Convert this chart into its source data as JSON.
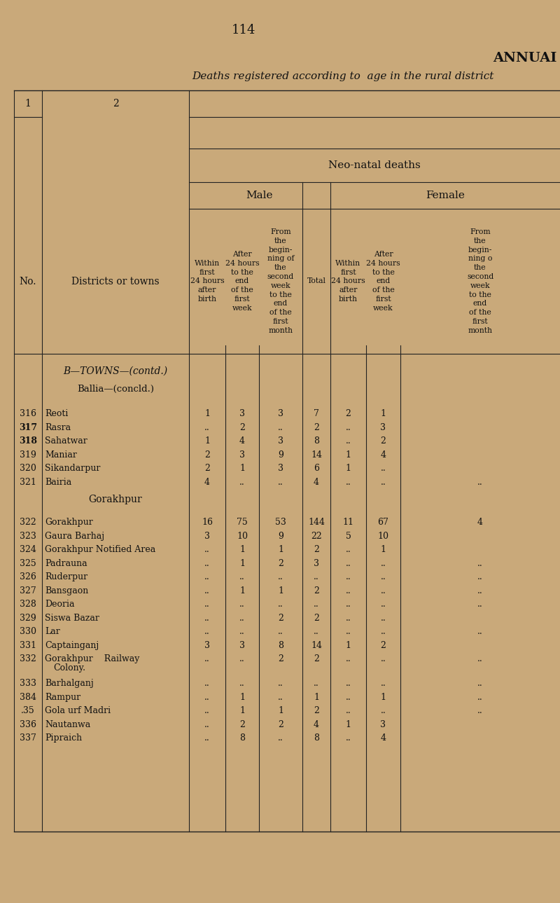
{
  "page_number": "114",
  "title_right": "ANNUAI",
  "subtitle": "Deaths registered according to  age in the rural district",
  "bg_color": "#c9a97a",
  "text_color": "#111111",
  "neo_natal_header": "Neo-natal deaths",
  "male_header": "Male",
  "female_header": "Female",
  "col_no_header": "No.",
  "col_district_header": "Districts or towns",
  "section_ballia_towns": "B—TOWNS—(contd.)",
  "subsection_ballia": "Ballia—(concld.)",
  "section_gorakhpur": "Gorakhpur",
  "col_header_m1": "Within\nfirst\n24 hours\nafter\nbirth",
  "col_header_m2": "After\n24 hours\nto the\nend\nof the\nfirst\nweek",
  "col_header_m3": "From\nthe\nbegin-\nning of\nthe\nsecond\nweek\nto the\nend\nof the\nfirst\nmonth",
  "col_header_total": "Total",
  "col_header_f1": "Within\nfirst\n24 hours\nafter\nbirth",
  "col_header_f2": "After\n24 hours\nto the\nend\nof the\nfirst\nweek",
  "col_header_f3": "From\nthe\nbegin-\nning o\nthe\nsecond\nweek\nto the\nend\nof the\nfirst\nmonth",
  "rows": [
    {
      "no": "316",
      "name": "Reoti",
      "dots": true,
      "m1": "1",
      "m2": "3",
      "m3": "3",
      "total": "7",
      "f1": "2",
      "f2": "1",
      "f3": "",
      "bold": false
    },
    {
      "no": "317",
      "name": "Rasra",
      "dots": true,
      "m1": "..",
      "m2": "2",
      "m3": "..",
      "total": "2",
      "f1": "..",
      "f2": "3",
      "f3": "",
      "bold": true
    },
    {
      "no": "318",
      "name": "Sahatwar",
      "dots": true,
      "m1": "1",
      "m2": "4",
      "m3": "3",
      "total": "8",
      "f1": "..",
      "f2": "2",
      "f3": "",
      "bold": true
    },
    {
      "no": "319",
      "name": "Maniar",
      "dots": true,
      "m1": "2",
      "m2": "3",
      "m3": "9",
      "total": "14",
      "f1": "1",
      "f2": "4",
      "f3": "",
      "bold": false
    },
    {
      "no": "320",
      "name": "Sikandarpur",
      "dots": true,
      "m1": "2",
      "m2": "1",
      "m3": "3",
      "total": "6",
      "f1": "1",
      "f2": "..",
      "f3": "",
      "bold": false
    },
    {
      "no": "321",
      "name": "Bairia",
      "dots": true,
      "m1": "4",
      "m2": "..",
      "m3": "..",
      "total": "4",
      "f1": "..",
      "f2": "..",
      "f3": "..",
      "bold": false
    },
    {
      "no": "322",
      "name": "Gorakhpur",
      "dots": true,
      "m1": "16",
      "m2": "75",
      "m3": "53",
      "total": "144",
      "f1": "11",
      "f2": "67",
      "f3": "4",
      "bold": false
    },
    {
      "no": "323",
      "name": "Gaura Barhaj",
      "dots": true,
      "m1": "3",
      "m2": "10",
      "m3": "9",
      "total": "22",
      "f1": "5",
      "f2": "10",
      "f3": "",
      "bold": false
    },
    {
      "no": "324",
      "name": "Gorakhpur Notified Area",
      "dots": false,
      "m1": "..",
      "m2": "1",
      "m3": "1",
      "total": "2",
      "f1": "..",
      "f2": "1",
      "f3": "",
      "bold": false
    },
    {
      "no": "325",
      "name": "Padrauna",
      "dots": true,
      "m1": "..",
      "m2": "1",
      "m3": "2",
      "total": "3",
      "f1": "..",
      "f2": "..",
      "f3": "..",
      "bold": false
    },
    {
      "no": "326",
      "name": "Ruderpur",
      "dots": true,
      "m1": "..",
      "m2": "..",
      "m3": "..",
      "total": "..",
      "f1": "..",
      "f2": "..",
      "f3": "..",
      "bold": false
    },
    {
      "no": "327",
      "name": "Bansgaon",
      "dots": true,
      "m1": "..",
      "m2": "1",
      "m3": "1",
      "total": "2",
      "f1": "..",
      "f2": "..",
      "f3": "..",
      "bold": false
    },
    {
      "no": "328",
      "name": "Deoria",
      "dots": true,
      "m1": "..",
      "m2": "..",
      "m3": "..",
      "total": "..",
      "f1": "..",
      "f2": "..",
      "f3": "..",
      "bold": false
    },
    {
      "no": "329",
      "name": "Siswa Bazar",
      "dots": true,
      "m1": "..",
      "m2": "..",
      "m3": "2",
      "total": "2",
      "f1": "..",
      "f2": "..",
      "f3": "",
      "bold": false
    },
    {
      "no": "330",
      "name": "Lar",
      "dots": true,
      "m1": "..",
      "m2": "..",
      "m3": "..",
      "total": "..",
      "f1": "..",
      "f2": "..",
      "f3": "..",
      "bold": false
    },
    {
      "no": "331",
      "name": "Captainganj",
      "dots": true,
      "m1": "3",
      "m2": "3",
      "m3": "8",
      "total": "14",
      "f1": "1",
      "f2": "2",
      "f3": "",
      "bold": false
    },
    {
      "no": "332",
      "name": "Gorakhpur",
      "name2": "Colony.",
      "dots_extra": "Railway",
      "m1": "..",
      "m2": "..",
      "m3": "2",
      "total": "2",
      "f1": "..",
      "f2": "..",
      "f3": "..",
      "bold": false
    },
    {
      "no": "333",
      "name": "Barhalganj",
      "dots": true,
      "m1": "..",
      "m2": "..",
      "m3": "..",
      "total": "..",
      "f1": "..",
      "f2": "..",
      "f3": "..",
      "bold": false
    },
    {
      "no": "384",
      "name": "Rampur",
      "dots": true,
      "m1": "..",
      "m2": "1",
      "m3": "..",
      "total": "1",
      "f1": "..",
      "f2": "1",
      "f3": "..",
      "bold": false
    },
    {
      "no": ".35",
      "name": "Gola urf Madri",
      "dots": true,
      "m1": "..",
      "m2": "1",
      "m3": "1",
      "total": "2",
      "f1": "..",
      "f2": "..",
      "f3": "..",
      "bold": false
    },
    {
      "no": "336",
      "name": "Nautanwa",
      "dots": true,
      "m1": "..",
      "m2": "2",
      "m3": "2",
      "total": "4",
      "f1": "1",
      "f2": "3",
      "f3": "",
      "bold": false
    },
    {
      "no": "337",
      "name": "Pipraich",
      "dots": true,
      "m1": "..",
      "m2": "8",
      "m3": "..",
      "total": "8",
      "f1": "..",
      "f2": "4",
      "f3": "",
      "bold": false
    }
  ]
}
